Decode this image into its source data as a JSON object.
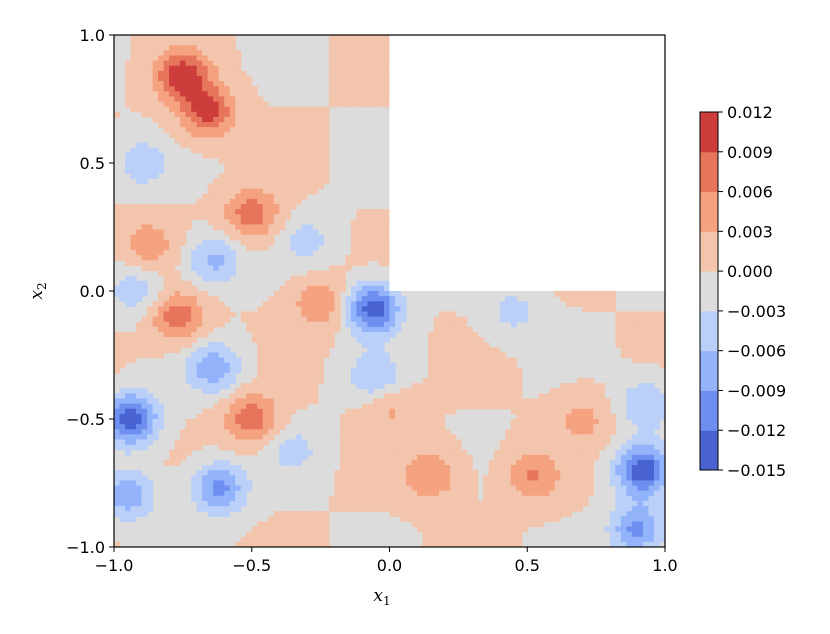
{
  "chart_data": {
    "type": "heatmap",
    "subtype": "filled-contour",
    "title": "",
    "xlabel": "x",
    "xlabel_subscript": "1",
    "ylabel": "x",
    "ylabel_subscript": "2",
    "xlim": [
      -1.0,
      1.0
    ],
    "ylim": [
      -1.0,
      1.0
    ],
    "x_ticks": [
      -1.0,
      -0.5,
      0.0,
      0.5,
      1.0
    ],
    "x_tick_labels": [
      "−1.0",
      "−0.5",
      "0.0",
      "0.5",
      "1.0"
    ],
    "y_ticks": [
      -1.0,
      -0.5,
      0.0,
      0.5,
      1.0
    ],
    "y_tick_labels": [
      "−1.0",
      "−0.5",
      "0.0",
      "0.5",
      "1.0"
    ],
    "grid": false,
    "domain": "L-shaped region: square [-1,1]x[-1,1] minus upper-right quadrant [0,1]x[0,1]",
    "masked_region": {
      "x": [
        0.0,
        1.0
      ],
      "y": [
        0.0,
        1.0
      ]
    },
    "colormap": "coolwarm",
    "background_level_color": "#dcdcdc",
    "colorbar": {
      "location": "right",
      "levels": [
        -0.015,
        -0.012,
        -0.009,
        -0.006,
        -0.003,
        0.0,
        0.003,
        0.006,
        0.009,
        0.012
      ],
      "level_labels": [
        "−0.015",
        "−0.012",
        "−0.009",
        "−0.006",
        "−0.003",
        "0.000",
        "0.003",
        "0.006",
        "0.009",
        "0.012"
      ],
      "band_colors": [
        "#4a63d3",
        "#6e8ff0",
        "#93b3fb",
        "#bad0f9",
        "#dcdcdc",
        "#f3c5ac",
        "#f5a281",
        "#e7755b",
        "#cc3d3b"
      ]
    },
    "hotspots": [
      {
        "x": -0.75,
        "y": 0.84,
        "value": 0.011
      },
      {
        "x": -0.66,
        "y": 0.7,
        "value": 0.01
      },
      {
        "x": -0.5,
        "y": 0.3,
        "value": 0.008
      },
      {
        "x": -0.77,
        "y": -0.1,
        "value": 0.008
      },
      {
        "x": -0.5,
        "y": -0.5,
        "value": 0.008
      },
      {
        "x": -0.25,
        "y": -0.05,
        "value": 0.006
      },
      {
        "x": -0.88,
        "y": 0.18,
        "value": 0.005
      },
      {
        "x": 0.15,
        "y": -0.72,
        "value": 0.006
      },
      {
        "x": 0.52,
        "y": -0.72,
        "value": 0.006
      },
      {
        "x": 0.7,
        "y": -0.5,
        "value": 0.004
      },
      {
        "x": 0.0,
        "y": -0.45,
        "value": 0.004
      },
      {
        "x": -0.06,
        "y": -0.07,
        "value": -0.014
      },
      {
        "x": -0.94,
        "y": -0.5,
        "value": -0.014
      },
      {
        "x": 0.92,
        "y": -0.7,
        "value": -0.014
      },
      {
        "x": -0.62,
        "y": -0.77,
        "value": -0.01
      },
      {
        "x": -0.95,
        "y": -0.8,
        "value": -0.008
      },
      {
        "x": 0.9,
        "y": -0.93,
        "value": -0.01
      },
      {
        "x": -0.64,
        "y": -0.3,
        "value": -0.008
      },
      {
        "x": -0.64,
        "y": 0.12,
        "value": -0.007
      },
      {
        "x": -0.9,
        "y": 0.5,
        "value": -0.005
      },
      {
        "x": -0.92,
        "y": 0.0,
        "value": -0.005
      },
      {
        "x": -0.3,
        "y": 0.2,
        "value": -0.004
      },
      {
        "x": -0.05,
        "y": -0.34,
        "value": -0.006
      },
      {
        "x": 0.45,
        "y": -0.08,
        "value": -0.004
      },
      {
        "x": -0.35,
        "y": -0.62,
        "value": -0.004
      },
      {
        "x": 0.93,
        "y": -0.44,
        "value": -0.006
      }
    ]
  }
}
